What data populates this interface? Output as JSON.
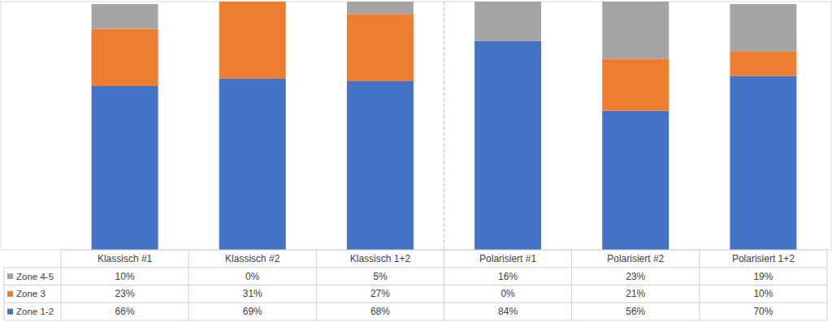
{
  "chart_data": {
    "type": "bar",
    "stacked": true,
    "tick_labels": false,
    "categories": [
      "Klassisch #1",
      "Klassisch #2",
      "Klassisch 1+2",
      "Polarisiert #1",
      "Polarisiert #2",
      "Polarisiert 1+2"
    ],
    "ylim": [
      0,
      100
    ],
    "series": [
      {
        "name": "Zone 1-2",
        "color": "#4472c4",
        "values": [
          66,
          69,
          68,
          84,
          56,
          70
        ],
        "value_labels": [
          "66%",
          "69%",
          "68%",
          "84%",
          "56%",
          "70%"
        ]
      },
      {
        "name": "Zone 3",
        "color": "#ed7d31",
        "values": [
          23,
          31,
          27,
          0,
          21,
          10
        ],
        "value_labels": [
          "23%",
          "31%",
          "27%",
          "0%",
          "21%",
          "10%"
        ]
      },
      {
        "name": "Zone 4-5",
        "color": "#a5a5a5",
        "values": [
          10,
          0,
          5,
          16,
          23,
          19
        ],
        "value_labels": [
          "10%",
          "0%",
          "5%",
          "16%",
          "23%",
          "19%"
        ]
      }
    ]
  }
}
